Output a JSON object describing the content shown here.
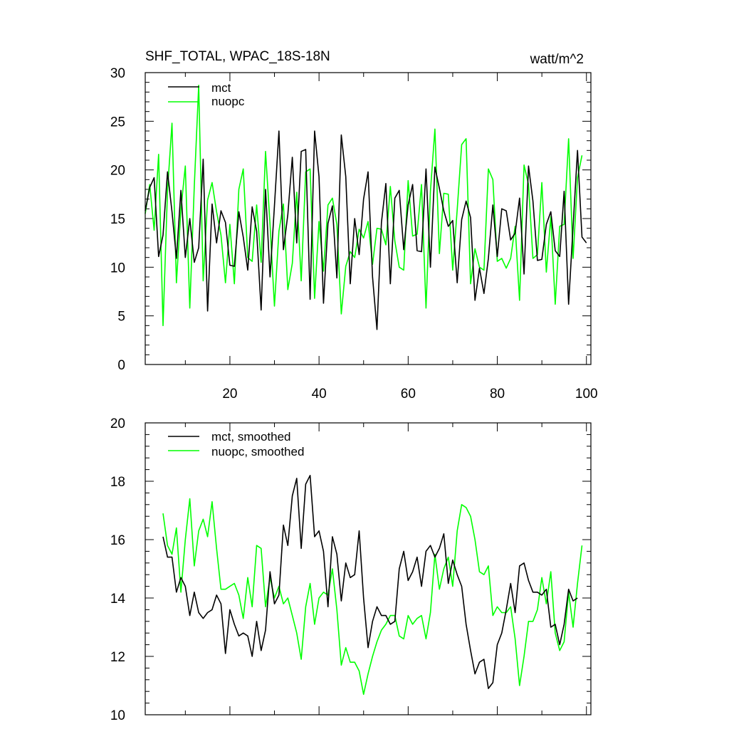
{
  "chart_data": [
    {
      "type": "line",
      "title": "SHF_TOTAL, WPAC_18S-18N",
      "units": "watt/m^2",
      "x_start": 1,
      "xlim": [
        1,
        101
      ],
      "ylim": [
        0,
        30
      ],
      "x_major_ticks": [
        20,
        40,
        60,
        80,
        100
      ],
      "x_tick_labels": [
        "20",
        "40",
        "60",
        "80",
        "100"
      ],
      "y_major_ticks": [
        0,
        5,
        10,
        15,
        20,
        25,
        30
      ],
      "y_tick_labels": [
        "0",
        "5",
        "10",
        "15",
        "20",
        "25",
        "30"
      ],
      "legend_position": "top-left",
      "series": [
        {
          "name": "mct",
          "color": "#000000",
          "values": [
            15.8,
            18.2,
            19.2,
            11.1,
            13.3,
            19.8,
            15.7,
            10.9,
            17.9,
            11.0,
            15.0,
            10.5,
            12.0,
            21.1,
            5.5,
            16.5,
            12.5,
            15.8,
            14.6,
            10.2,
            10.1,
            15.7,
            13.1,
            9.7,
            16.2,
            13.7,
            5.6,
            18.0,
            9.0,
            16.3,
            24.0,
            11.8,
            15.4,
            21.3,
            12.5,
            21.9,
            22.1,
            6.7,
            24.0,
            19.3,
            6.3,
            14.5,
            16.3,
            8.9,
            23.6,
            19.3,
            8.3,
            15.0,
            11.3,
            17.0,
            19.8,
            9.0,
            3.6,
            14.6,
            18.6,
            8.3,
            17.1,
            17.9,
            11.8,
            16.4,
            18.5,
            11.7,
            11.6,
            20.1,
            10.0,
            20.3,
            18.1,
            15.8,
            14.2,
            14.8,
            8.4,
            14.9,
            16.8,
            15.1,
            6.6,
            9.9,
            7.3,
            10.9,
            16.4,
            11.1,
            16.0,
            15.8,
            12.8,
            13.5,
            17.1,
            9.3,
            20.4,
            16.8,
            10.7,
            10.8,
            14.4,
            15.7,
            11.7,
            11.1,
            17.8,
            6.2,
            14.2,
            22.0,
            13.1,
            12.5
          ]
        },
        {
          "name": "nuopc",
          "color": "#00ff00",
          "values": [
            15.5,
            18.5,
            13.8,
            21.6,
            4.0,
            17.9,
            24.8,
            8.4,
            15.9,
            20.4,
            5.8,
            18.3,
            28.7,
            8.6,
            16.9,
            18.7,
            15.7,
            13.3,
            8.4,
            14.4,
            8.3,
            18.0,
            20.1,
            11.0,
            10.6,
            16.4,
            10.5,
            21.9,
            14.4,
            6.0,
            13.7,
            16.5,
            7.7,
            10.4,
            17.7,
            8.6,
            19.8,
            20.1,
            6.8,
            14.7,
            9.6,
            16.4,
            17.1,
            14.4,
            5.2,
            10.1,
            11.6,
            11.0,
            13.9,
            13.0,
            14.7,
            10.3,
            14.0,
            13.9,
            12.3,
            18.3,
            12.7,
            10.0,
            9.7,
            18.9,
            13.2,
            13.4,
            18.5,
            5.8,
            17.8,
            24.2,
            11.4,
            17.6,
            17.5,
            9.7,
            15.9,
            22.6,
            23.2,
            8.3,
            11.9,
            10.0,
            9.7,
            20.1,
            19.0,
            10.6,
            10.9,
            9.9,
            10.9,
            14.2,
            6.6,
            20.5,
            18.5,
            10.9,
            11.3,
            18.7,
            9.5,
            15.2,
            6.2,
            14.2,
            14.4,
            23.2,
            10.9,
            19.2,
            21.5
          ]
        }
      ]
    },
    {
      "type": "line",
      "x_start": 5,
      "xlim": [
        1,
        101
      ],
      "ylim": [
        10,
        20
      ],
      "x_major_ticks": [
        20,
        40,
        60,
        80,
        100
      ],
      "x_tick_labels": [],
      "y_major_ticks": [
        10,
        12,
        14,
        16,
        18,
        20
      ],
      "y_tick_labels": [
        "10",
        "12",
        "14",
        "16",
        "18",
        "20"
      ],
      "legend_position": "top-left",
      "series": [
        {
          "name": "mct, smoothed",
          "color": "#000000",
          "values": [
            16.1,
            15.4,
            15.4,
            14.2,
            14.7,
            14.4,
            13.4,
            14.2,
            13.5,
            13.3,
            13.5,
            13.6,
            14.1,
            13.8,
            12.1,
            13.6,
            13.1,
            12.7,
            12.8,
            12.7,
            12.0,
            13.2,
            12.2,
            12.9,
            14.9,
            13.8,
            14.1,
            16.5,
            15.8,
            17.5,
            18.1,
            15.7,
            17.9,
            18.2,
            16.1,
            16.3,
            15.6,
            13.7,
            16.1,
            15.5,
            13.9,
            15.2,
            14.7,
            14.8,
            16.3,
            14.0,
            12.3,
            13.2,
            13.7,
            13.4,
            13.4,
            13.1,
            13.2,
            15.0,
            15.6,
            14.6,
            14.9,
            15.4,
            14.4,
            15.6,
            15.8,
            15.4,
            15.7,
            16.2,
            14.5,
            15.3,
            14.8,
            14.4,
            13.1,
            12.2,
            11.4,
            11.8,
            11.9,
            10.9,
            11.1,
            12.4,
            12.8,
            13.6,
            14.5,
            13.5,
            15.1,
            15.2,
            14.6,
            14.2,
            14.2,
            14.1,
            14.3,
            13.0,
            13.1,
            12.4,
            13.1,
            14.3,
            13.9,
            14.0
          ]
        },
        {
          "name": "nuopc, smoothed",
          "color": "#00ff00",
          "values": [
            16.9,
            15.8,
            15.5,
            16.4,
            14.2,
            16.0,
            17.4,
            15.1,
            16.3,
            16.7,
            16.1,
            17.3,
            15.7,
            14.3,
            14.3,
            14.4,
            14.5,
            14.1,
            13.3,
            14.7,
            13.7,
            15.8,
            15.7,
            13.7,
            14.7,
            14.0,
            14.4,
            13.8,
            14.0,
            13.4,
            12.8,
            11.9,
            13.7,
            14.5,
            13.1,
            14.0,
            14.2,
            14.1,
            15.0,
            13.6,
            11.7,
            12.3,
            11.8,
            11.8,
            11.5,
            10.7,
            11.4,
            12.0,
            12.5,
            12.9,
            13.1,
            13.4,
            13.4,
            12.7,
            12.6,
            13.4,
            13.1,
            13.3,
            13.4,
            12.6,
            13.5,
            15.5,
            14.3,
            15.0,
            15.4,
            14.4,
            16.3,
            17.2,
            17.1,
            16.8,
            16.0,
            14.9,
            14.8,
            15.1,
            13.4,
            13.7,
            13.5,
            13.5,
            13.7,
            12.6,
            11.0,
            12.0,
            13.2,
            13.2,
            13.6,
            14.7,
            13.8,
            14.9,
            12.8,
            12.2,
            12.5,
            14.2,
            13.0,
            14.5,
            15.8
          ]
        }
      ]
    }
  ]
}
